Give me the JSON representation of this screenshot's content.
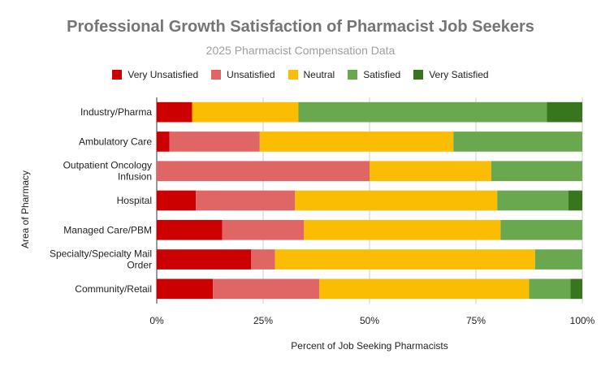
{
  "chart_data": {
    "type": "bar",
    "orientation": "horizontal",
    "stacked": true,
    "normalized": true,
    "title": "Professional Growth Satisfaction of Pharmacist Job Seekers",
    "subtitle": "2025 Pharmacist Compensation Data",
    "xlabel": "Percent of Job Seeking Pharmacists",
    "ylabel": "Area of Pharmacy",
    "xlim": [
      0,
      100
    ],
    "xticks": [
      "0%",
      "25%",
      "50%",
      "75%",
      "100%"
    ],
    "legend_position": "top",
    "grid": true,
    "categories": [
      [
        "Industry/Pharma"
      ],
      [
        "Ambulatory Care"
      ],
      [
        "Outpatient Oncology",
        "Infusion"
      ],
      [
        "Hospital"
      ],
      [
        "Managed Care/PBM"
      ],
      [
        "Specialty/Specialty Mail",
        "Order"
      ],
      [
        "Community/Retail"
      ]
    ],
    "series": [
      {
        "name": "Very Unsatisfied",
        "color": "#cc0000",
        "values": [
          8.3,
          3.0,
          0,
          9.2,
          15.4,
          22.2,
          13.2
        ]
      },
      {
        "name": "Unsatisfied",
        "color": "#e06666",
        "values": [
          0,
          21.2,
          50.0,
          23.3,
          19.2,
          5.6,
          25.0
        ]
      },
      {
        "name": "Neutral",
        "color": "#fbbc04",
        "values": [
          25.0,
          45.5,
          28.6,
          47.5,
          46.2,
          61.1,
          49.3
        ]
      },
      {
        "name": "Satisfied",
        "color": "#6aa84f",
        "values": [
          58.4,
          30.3,
          21.4,
          16.7,
          19.2,
          11.1,
          9.7
        ]
      },
      {
        "name": "Very Satisfied",
        "color": "#38761d",
        "values": [
          8.3,
          0,
          0,
          3.3,
          0,
          0,
          2.8
        ]
      }
    ]
  }
}
